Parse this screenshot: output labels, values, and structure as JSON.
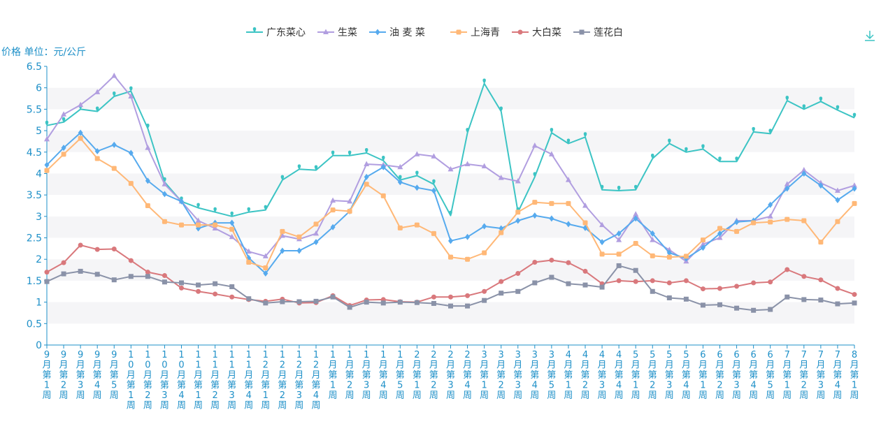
{
  "chart_data": {
    "type": "line",
    "unit_label": "价格 单位：元/公斤",
    "ylim": [
      0,
      6.5
    ],
    "yticks": [
      "0",
      "0.5",
      "1",
      "1.5",
      "2",
      "2.5",
      "3",
      "3.5",
      "4",
      "4.5",
      "5",
      "5.5",
      "6",
      "6.5"
    ],
    "grid": "horizontal-bands",
    "legend_position": "top-center",
    "x": [
      "9月第1周",
      "9月第2周",
      "9月第3周",
      "9月第4周",
      "9月第5周",
      "10月第1周",
      "10月第2周",
      "10月第3周",
      "10月第4周",
      "11月第1周",
      "11月第2周",
      "11月第3周",
      "11月第4周",
      "12月第1周",
      "12月第2周",
      "12月第3周",
      "12月第4周",
      "1月第1周",
      "1月第2周",
      "1月第3周",
      "1月第4周",
      "1月第5周",
      "2月第1周",
      "2月第2周",
      "2月第3周",
      "2月第4周",
      "3月第1周",
      "3月第2周",
      "3月第3周",
      "3月第4周",
      "3月第5周",
      "4月第1周",
      "4月第2周",
      "4月第3周",
      "4月第4周",
      "5月第1周",
      "5月第2周",
      "5月第3周",
      "5月第4周",
      "6月第1周",
      "6月第2周",
      "6月第3周",
      "6月第4周",
      "6月第5周",
      "7月第1周",
      "7月第2周",
      "7月第3周",
      "7月第4周",
      "8月第1周"
    ],
    "series": [
      {
        "name": "广东菜心",
        "color": "#3cc4c4",
        "marker": "pin",
        "values": [
          5.12,
          5.2,
          5.5,
          5.45,
          5.8,
          5.92,
          5.05,
          3.8,
          3.35,
          3.2,
          3.1,
          3.0,
          3.1,
          3.15,
          3.85,
          4.1,
          4.08,
          4.42,
          4.42,
          4.48,
          4.3,
          3.85,
          3.95,
          3.75,
          3.02,
          4.95,
          6.1,
          5.45,
          3.1,
          3.92,
          4.95,
          4.7,
          4.85,
          3.62,
          3.6,
          3.62,
          4.35,
          4.7,
          4.5,
          4.57,
          4.28,
          4.28,
          4.97,
          4.93,
          5.7,
          5.5,
          5.68,
          5.48,
          5.3
        ]
      },
      {
        "name": "生菜",
        "color": "#b19ee0",
        "marker": "triangle",
        "values": [
          4.8,
          5.38,
          5.6,
          5.9,
          6.28,
          5.8,
          4.6,
          3.75,
          3.35,
          2.9,
          2.72,
          2.52,
          2.18,
          2.07,
          2.55,
          2.47,
          2.6,
          3.37,
          3.35,
          4.22,
          4.2,
          4.15,
          4.45,
          4.4,
          4.1,
          4.22,
          4.17,
          3.9,
          3.82,
          4.65,
          4.45,
          3.85,
          3.25,
          2.8,
          2.45,
          3.05,
          2.45,
          2.22,
          1.95,
          2.35,
          2.5,
          2.9,
          2.9,
          3.0,
          3.75,
          4.08,
          3.78,
          3.6,
          3.72
        ]
      },
      {
        "name": "油 麦 菜",
        "color": "#56aaee",
        "marker": "diamond",
        "values": [
          4.2,
          4.6,
          4.95,
          4.52,
          4.67,
          4.48,
          3.83,
          3.52,
          3.35,
          2.72,
          2.85,
          2.85,
          2.03,
          1.67,
          2.2,
          2.2,
          2.4,
          2.75,
          3.12,
          3.92,
          4.15,
          3.8,
          3.67,
          3.6,
          2.43,
          2.52,
          2.77,
          2.72,
          2.9,
          3.02,
          2.95,
          2.82,
          2.73,
          2.4,
          2.6,
          2.95,
          2.6,
          2.15,
          2.02,
          2.27,
          2.6,
          2.87,
          2.9,
          3.27,
          3.65,
          4.0,
          3.72,
          3.38,
          3.65
        ]
      },
      {
        "name": "上海青",
        "color": "#ffb877",
        "marker": "square",
        "values": [
          4.07,
          4.45,
          4.82,
          4.35,
          4.12,
          3.77,
          3.25,
          2.88,
          2.8,
          2.8,
          2.8,
          2.7,
          1.93,
          1.8,
          2.65,
          2.52,
          2.82,
          3.15,
          3.12,
          3.75,
          3.48,
          2.73,
          2.8,
          2.6,
          2.05,
          2.0,
          2.15,
          2.62,
          3.1,
          3.33,
          3.3,
          3.3,
          2.85,
          2.12,
          2.12,
          2.37,
          2.08,
          2.05,
          2.07,
          2.45,
          2.72,
          2.65,
          2.85,
          2.87,
          2.93,
          2.9,
          2.4,
          2.88,
          3.3
        ]
      },
      {
        "name": "大白菜",
        "color": "#d9787c",
        "marker": "circle",
        "values": [
          1.7,
          1.92,
          2.33,
          2.23,
          2.24,
          1.97,
          1.7,
          1.62,
          1.33,
          1.25,
          1.19,
          1.12,
          1.06,
          1.02,
          1.07,
          0.98,
          0.99,
          1.15,
          0.92,
          1.05,
          1.06,
          1.01,
          1.0,
          1.12,
          1.12,
          1.15,
          1.25,
          1.48,
          1.67,
          1.93,
          1.98,
          1.92,
          1.72,
          1.43,
          1.5,
          1.48,
          1.5,
          1.45,
          1.5,
          1.31,
          1.32,
          1.37,
          1.45,
          1.47,
          1.76,
          1.6,
          1.52,
          1.32,
          1.18
        ]
      },
      {
        "name": "莲花白",
        "color": "#8a92a8",
        "marker": "rect",
        "values": [
          1.48,
          1.66,
          1.72,
          1.65,
          1.52,
          1.6,
          1.6,
          1.47,
          1.45,
          1.4,
          1.43,
          1.36,
          1.08,
          0.98,
          1.01,
          1.01,
          1.02,
          1.12,
          0.88,
          1.0,
          0.98,
          1.0,
          0.99,
          0.97,
          0.91,
          0.91,
          1.04,
          1.21,
          1.25,
          1.45,
          1.58,
          1.43,
          1.4,
          1.35,
          1.85,
          1.74,
          1.25,
          1.1,
          1.07,
          0.93,
          0.94,
          0.86,
          0.81,
          0.83,
          1.12,
          1.06,
          1.05,
          0.96,
          0.98
        ]
      }
    ]
  },
  "toolbar": {
    "download_icon": "download-icon"
  }
}
